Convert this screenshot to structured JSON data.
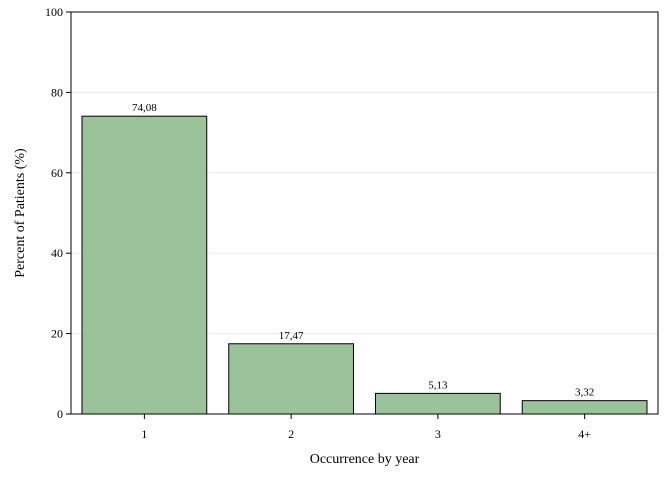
{
  "chart_data": {
    "type": "bar",
    "title": "",
    "xlabel": "Occurrence by year",
    "ylabel": "Percent of Patients (%)",
    "categories": [
      "1",
      "2",
      "3",
      "4+"
    ],
    "values": [
      74.08,
      17.47,
      5.13,
      3.32
    ],
    "value_labels": [
      "74,08",
      "17,47",
      "5,13",
      "3,32"
    ],
    "ylim": [
      0,
      100
    ],
    "yticks": [
      0,
      20,
      40,
      60,
      80,
      100
    ],
    "ytick_labels": [
      "0",
      "20",
      "40",
      "60",
      "80",
      "100"
    ],
    "grid": true,
    "legend": "none",
    "bar_color": "#9bc39a",
    "bar_edge_color": "#000000",
    "grid_color": "#ececec"
  }
}
